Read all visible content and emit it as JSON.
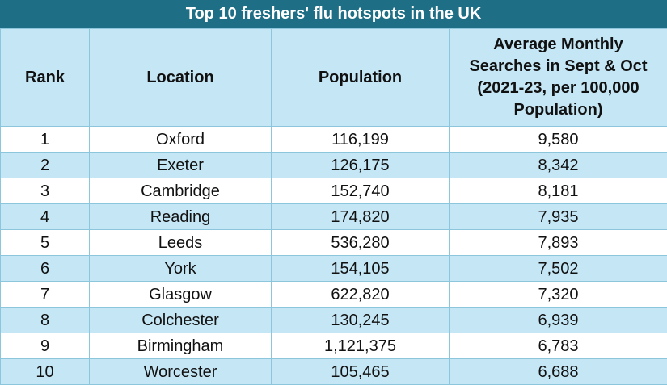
{
  "table": {
    "title": "Top 10 freshers' flu hotspots in the UK",
    "columns": [
      "Rank",
      "Location",
      "Population",
      "Average Monthly Searches in Sept & Oct (2021-23, per 100,000 Population)"
    ],
    "rows": [
      [
        "1",
        "Oxford",
        "116,199",
        "9,580"
      ],
      [
        "2",
        "Exeter",
        "126,175",
        "8,342"
      ],
      [
        "3",
        "Cambridge",
        "152,740",
        "8,181"
      ],
      [
        "4",
        "Reading",
        "174,820",
        "7,935"
      ],
      [
        "5",
        "Leeds",
        "536,280",
        "7,893"
      ],
      [
        "6",
        "York",
        "154,105",
        "7,502"
      ],
      [
        "7",
        "Glasgow",
        "622,820",
        "7,320"
      ],
      [
        "8",
        "Colchester",
        "130,245",
        "6,939"
      ],
      [
        "9",
        "Birmingham",
        "1,121,375",
        "6,783"
      ],
      [
        "10",
        "Worcester",
        "105,465",
        "6,688"
      ]
    ]
  }
}
